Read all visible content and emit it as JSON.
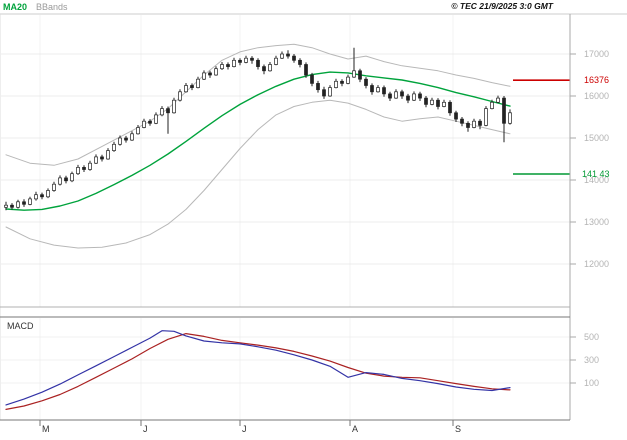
{
  "header": {
    "ma_label": "MA20",
    "bbands_label": "BBands",
    "copyright": "© TEC 21/9/2025 3:0 GMT"
  },
  "price_axis": {
    "labels": [
      "17000",
      "16000",
      "15000",
      "14000",
      "13000",
      "12000"
    ]
  },
  "levels": {
    "resistance_label": "16376",
    "support_label": "141 43"
  },
  "macd_axis": {
    "labels": [
      "500",
      "300",
      "100"
    ],
    "panel_label": "MACD"
  },
  "time_axis": {
    "labels": [
      "M",
      "J",
      "J",
      "A",
      "S"
    ]
  },
  "colors": {
    "ma20": "#00a33c",
    "bbands": "#b8b8b8",
    "candle": "#222222",
    "resistance": "#cc0000",
    "support": "#009933",
    "macd_line": "#3333a6",
    "macd_signal": "#aa2222"
  },
  "chart_data": {
    "type": "candlestick",
    "title": "",
    "xlabel": "",
    "ylabel": "",
    "x_axis_months": [
      "M",
      "J",
      "J",
      "A",
      "S"
    ],
    "price_panel": {
      "ylim": [
        11700,
        17450
      ],
      "y_ticks": [
        12000,
        13000,
        14000,
        15000,
        16000,
        17000
      ],
      "series_legend": [
        "MA20",
        "BBands"
      ],
      "resistance_level": 16376,
      "support_level": 14143,
      "candles_ohlc": [
        [
          13350,
          13480,
          13280,
          13400
        ],
        [
          13400,
          13450,
          13290,
          13350
        ],
        [
          13350,
          13530,
          13320,
          13480
        ],
        [
          13480,
          13540,
          13360,
          13420
        ],
        [
          13420,
          13600,
          13400,
          13550
        ],
        [
          13550,
          13720,
          13510,
          13650
        ],
        [
          13650,
          13700,
          13540,
          13600
        ],
        [
          13600,
          13800,
          13570,
          13750
        ],
        [
          13750,
          13960,
          13720,
          13900
        ],
        [
          13900,
          14110,
          13870,
          14050
        ],
        [
          14050,
          14100,
          13920,
          13980
        ],
        [
          13980,
          14200,
          13950,
          14150
        ],
        [
          14150,
          14360,
          14120,
          14300
        ],
        [
          14300,
          14350,
          14190,
          14250
        ],
        [
          14250,
          14460,
          14220,
          14400
        ],
        [
          14400,
          14610,
          14380,
          14550
        ],
        [
          14550,
          14600,
          14440,
          14500
        ],
        [
          14500,
          14760,
          14480,
          14700
        ],
        [
          14700,
          14910,
          14670,
          14850
        ],
        [
          14850,
          15060,
          14820,
          15000
        ],
        [
          15000,
          15050,
          14890,
          14950
        ],
        [
          14950,
          15160,
          14930,
          15100
        ],
        [
          15100,
          15310,
          15080,
          15250
        ],
        [
          15250,
          15460,
          15230,
          15400
        ],
        [
          15400,
          15450,
          15290,
          15350
        ],
        [
          15350,
          15610,
          15330,
          15550
        ],
        [
          15550,
          15760,
          15520,
          15700
        ],
        [
          15700,
          15750,
          15100,
          15600
        ],
        [
          15600,
          15960,
          15580,
          15900
        ],
        [
          15900,
          16160,
          15870,
          16100
        ],
        [
          16100,
          16310,
          16080,
          16250
        ],
        [
          16250,
          16300,
          16140,
          16200
        ],
        [
          16200,
          16460,
          16180,
          16400
        ],
        [
          16400,
          16610,
          16380,
          16550
        ],
        [
          16550,
          16600,
          16430,
          16500
        ],
        [
          16500,
          16710,
          16480,
          16650
        ],
        [
          16650,
          16810,
          16620,
          16750
        ],
        [
          16750,
          16800,
          16630,
          16700
        ],
        [
          16700,
          16910,
          16680,
          16850
        ],
        [
          16850,
          16900,
          16730,
          16800
        ],
        [
          16800,
          16960,
          16780,
          16900
        ],
        [
          16900,
          16950,
          16770,
          16850
        ],
        [
          16850,
          16900,
          16630,
          16700
        ],
        [
          16700,
          16750,
          16520,
          16600
        ],
        [
          16600,
          16810,
          16580,
          16750
        ],
        [
          16750,
          16960,
          16730,
          16900
        ],
        [
          16900,
          17060,
          16880,
          17000
        ],
        [
          17000,
          17090,
          16890,
          16950
        ],
        [
          16950,
          17000,
          16790,
          16850
        ],
        [
          16850,
          16900,
          16680,
          16750
        ],
        [
          16750,
          16800,
          16430,
          16500
        ],
        [
          16500,
          16550,
          16230,
          16300
        ],
        [
          16300,
          16360,
          16080,
          16150
        ],
        [
          16150,
          16220,
          15930,
          16000
        ],
        [
          16000,
          16260,
          15980,
          16200
        ],
        [
          16200,
          16410,
          16180,
          16350
        ],
        [
          16350,
          16400,
          16230,
          16300
        ],
        [
          16300,
          16510,
          16280,
          16450
        ],
        [
          16450,
          17150,
          16430,
          16600
        ],
        [
          16600,
          16650,
          16330,
          16400
        ],
        [
          16400,
          16450,
          16180,
          16250
        ],
        [
          16250,
          16300,
          16030,
          16100
        ],
        [
          16100,
          16260,
          16080,
          16200
        ],
        [
          16200,
          16250,
          15980,
          16050
        ],
        [
          16050,
          16100,
          15880,
          15950
        ],
        [
          15950,
          16160,
          15930,
          16100
        ],
        [
          16100,
          16150,
          15930,
          16000
        ],
        [
          16000,
          16050,
          15830,
          15900
        ],
        [
          15900,
          16110,
          15880,
          16050
        ],
        [
          16050,
          16100,
          15880,
          15950
        ],
        [
          15950,
          16000,
          15730,
          15800
        ],
        [
          15800,
          15960,
          15780,
          15900
        ],
        [
          15900,
          15950,
          15680,
          15750
        ],
        [
          15750,
          15910,
          15730,
          15850
        ],
        [
          15850,
          15900,
          15530,
          15600
        ],
        [
          15600,
          15650,
          15380,
          15450
        ],
        [
          15450,
          15500,
          15280,
          15350
        ],
        [
          15350,
          15400,
          15150,
          15250
        ],
        [
          15250,
          15460,
          15230,
          15400
        ],
        [
          15400,
          15450,
          15210,
          15300
        ],
        [
          15300,
          15760,
          15280,
          15700
        ],
        [
          15700,
          15910,
          15680,
          15850
        ],
        [
          15850,
          16010,
          15830,
          15950
        ],
        [
          15950,
          16000,
          14900,
          15350
        ],
        [
          15350,
          15680,
          15320,
          15600
        ]
      ],
      "ma20": [
        [
          0,
          13310
        ],
        [
          3,
          13280
        ],
        [
          6,
          13300
        ],
        [
          9,
          13380
        ],
        [
          12,
          13500
        ],
        [
          15,
          13680
        ],
        [
          18,
          13890
        ],
        [
          21,
          14110
        ],
        [
          24,
          14350
        ],
        [
          27,
          14620
        ],
        [
          30,
          14920
        ],
        [
          33,
          15230
        ],
        [
          36,
          15530
        ],
        [
          39,
          15800
        ],
        [
          42,
          16030
        ],
        [
          45,
          16230
        ],
        [
          48,
          16400
        ],
        [
          51,
          16510
        ],
        [
          54,
          16570
        ],
        [
          57,
          16550
        ],
        [
          60,
          16480
        ],
        [
          63,
          16430
        ],
        [
          66,
          16380
        ],
        [
          69,
          16300
        ],
        [
          72,
          16200
        ],
        [
          75,
          16080
        ],
        [
          78,
          15980
        ],
        [
          81,
          15870
        ],
        [
          84,
          15760
        ]
      ],
      "bb_upper": [
        [
          0,
          14600
        ],
        [
          4,
          14400
        ],
        [
          8,
          14350
        ],
        [
          12,
          14500
        ],
        [
          16,
          14800
        ],
        [
          20,
          15100
        ],
        [
          24,
          15400
        ],
        [
          27,
          15700
        ],
        [
          30,
          16100
        ],
        [
          33,
          16500
        ],
        [
          36,
          16850
        ],
        [
          39,
          17050
        ],
        [
          42,
          17150
        ],
        [
          45,
          17200
        ],
        [
          48,
          17230
        ],
        [
          51,
          17150
        ],
        [
          54,
          17000
        ],
        [
          57,
          16880
        ],
        [
          60,
          16950
        ],
        [
          63,
          16820
        ],
        [
          66,
          16720
        ],
        [
          69,
          16660
        ],
        [
          72,
          16600
        ],
        [
          75,
          16500
        ],
        [
          78,
          16420
        ],
        [
          81,
          16320
        ],
        [
          84,
          16230
        ]
      ],
      "bb_lower": [
        [
          0,
          12880
        ],
        [
          4,
          12600
        ],
        [
          8,
          12450
        ],
        [
          12,
          12380
        ],
        [
          16,
          12400
        ],
        [
          20,
          12500
        ],
        [
          24,
          12700
        ],
        [
          27,
          12950
        ],
        [
          30,
          13300
        ],
        [
          33,
          13750
        ],
        [
          36,
          14250
        ],
        [
          39,
          14750
        ],
        [
          42,
          15200
        ],
        [
          45,
          15550
        ],
        [
          48,
          15750
        ],
        [
          51,
          15850
        ],
        [
          54,
          15900
        ],
        [
          57,
          15830
        ],
        [
          60,
          15680
        ],
        [
          63,
          15500
        ],
        [
          66,
          15400
        ],
        [
          69,
          15460
        ],
        [
          72,
          15500
        ],
        [
          75,
          15400
        ],
        [
          78,
          15300
        ],
        [
          81,
          15200
        ],
        [
          84,
          15100
        ]
      ]
    },
    "macd_panel": {
      "label": "MACD",
      "ylim": [
        -220,
        660
      ],
      "y_ticks": [
        100,
        300,
        500
      ],
      "macd_line": [
        [
          0,
          -90
        ],
        [
          3,
          -40
        ],
        [
          6,
          20
        ],
        [
          9,
          90
        ],
        [
          12,
          170
        ],
        [
          15,
          250
        ],
        [
          18,
          330
        ],
        [
          21,
          410
        ],
        [
          24,
          490
        ],
        [
          26,
          555
        ],
        [
          28,
          550
        ],
        [
          30,
          510
        ],
        [
          33,
          465
        ],
        [
          36,
          450
        ],
        [
          39,
          440
        ],
        [
          42,
          415
        ],
        [
          45,
          385
        ],
        [
          48,
          345
        ],
        [
          51,
          300
        ],
        [
          54,
          245
        ],
        [
          57,
          150
        ],
        [
          60,
          190
        ],
        [
          63,
          175
        ],
        [
          66,
          140
        ],
        [
          69,
          120
        ],
        [
          72,
          95
        ],
        [
          75,
          65
        ],
        [
          78,
          45
        ],
        [
          81,
          35
        ],
        [
          84,
          60
        ]
      ],
      "signal_line": [
        [
          0,
          -130
        ],
        [
          3,
          -100
        ],
        [
          6,
          -55
        ],
        [
          9,
          0
        ],
        [
          12,
          70
        ],
        [
          15,
          150
        ],
        [
          18,
          230
        ],
        [
          21,
          310
        ],
        [
          24,
          400
        ],
        [
          27,
          480
        ],
        [
          30,
          530
        ],
        [
          33,
          505
        ],
        [
          36,
          470
        ],
        [
          39,
          450
        ],
        [
          42,
          430
        ],
        [
          45,
          405
        ],
        [
          48,
          375
        ],
        [
          51,
          335
        ],
        [
          54,
          290
        ],
        [
          57,
          235
        ],
        [
          60,
          185
        ],
        [
          63,
          160
        ],
        [
          66,
          150
        ],
        [
          69,
          145
        ],
        [
          72,
          120
        ],
        [
          75,
          95
        ],
        [
          78,
          70
        ],
        [
          81,
          50
        ],
        [
          84,
          40
        ]
      ]
    }
  }
}
